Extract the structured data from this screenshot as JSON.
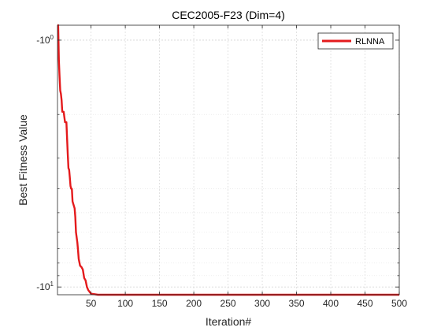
{
  "chart_data": {
    "type": "line",
    "title": "CEC2005-F23 (Dim=4)",
    "xlabel": "Iteration#",
    "ylabel": "Best Fitness Value",
    "xlim": [
      1,
      500
    ],
    "ylim": [
      -10.75,
      -0.87
    ],
    "y_scale": "symlog-negative",
    "grid": true,
    "legend_position": "top-right",
    "x_ticks": [
      50,
      100,
      150,
      200,
      250,
      300,
      350,
      400,
      450,
      500
    ],
    "x_tick_labels": [
      "50",
      "100",
      "150",
      "200",
      "250",
      "300",
      "350",
      "400",
      "450",
      "500"
    ],
    "y_ticks": [
      -1,
      -10
    ],
    "y_tick_labels": [
      {
        "base": "-10",
        "exp": "0"
      },
      {
        "base": "-10",
        "exp": "1"
      }
    ],
    "series": [
      {
        "name": "RLNNA",
        "color": "#e41a1c",
        "x": [
          1,
          2,
          3,
          4,
          5,
          6,
          7,
          8,
          10,
          12,
          14,
          15,
          16,
          17,
          18,
          19,
          20,
          21,
          22,
          23,
          24,
          26,
          27,
          28,
          30,
          31,
          32,
          34,
          36,
          38,
          40,
          42,
          44,
          46,
          50,
          55,
          60,
          500
        ],
        "y": [
          -0.87,
          -0.87,
          -1.2,
          -1.4,
          -1.6,
          -1.65,
          -1.75,
          -1.95,
          -1.95,
          -2.15,
          -2.15,
          -2.5,
          -2.9,
          -3.3,
          -3.35,
          -3.6,
          -3.9,
          -4.0,
          -4.0,
          -4.5,
          -4.6,
          -4.8,
          -5.2,
          -6.0,
          -6.6,
          -7.1,
          -7.7,
          -8.2,
          -8.3,
          -8.5,
          -9.2,
          -9.4,
          -10.0,
          -10.3,
          -10.65,
          -10.7,
          -10.75,
          -10.75
        ]
      }
    ]
  }
}
